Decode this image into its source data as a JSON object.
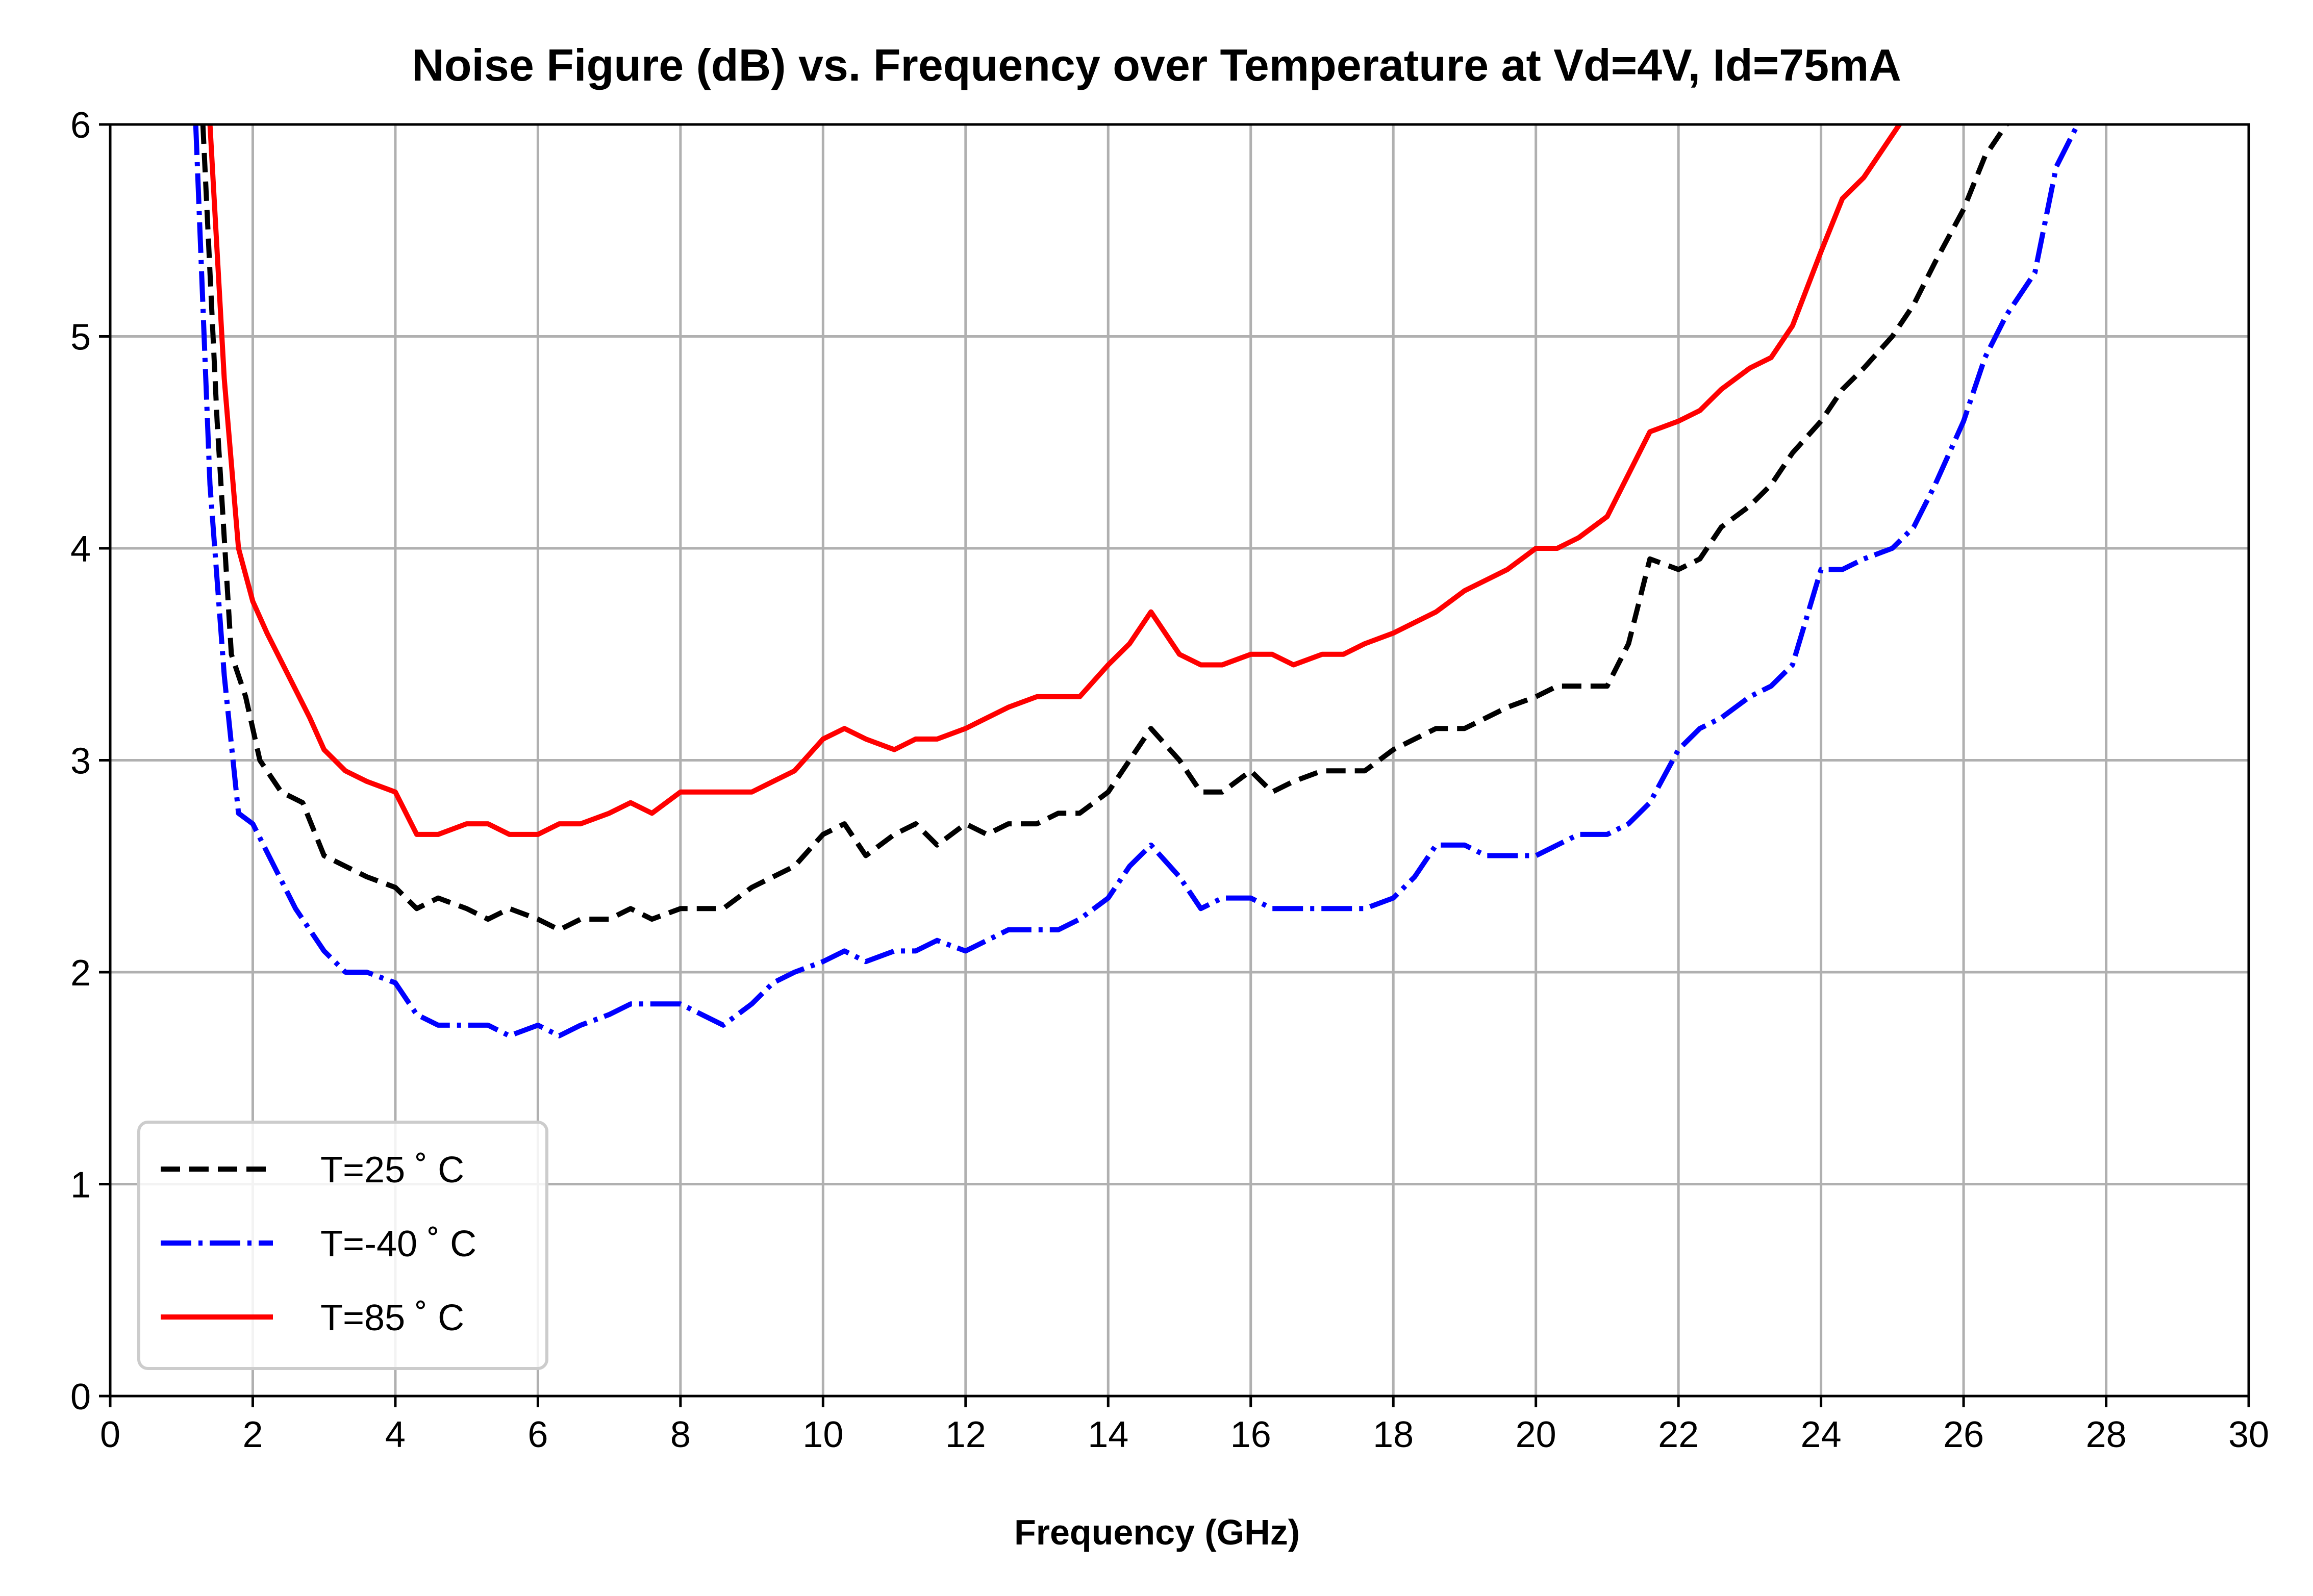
{
  "chart_data": {
    "type": "line",
    "title": "Noise Figure (dB) vs. Frequency over Temperature at Vd=4V, Id=75mA",
    "xlabel": "Frequency (GHz)",
    "ylabel": "",
    "xlim": [
      0,
      30
    ],
    "ylim": [
      0,
      6
    ],
    "xticks": [
      0,
      2,
      4,
      6,
      8,
      10,
      12,
      14,
      16,
      18,
      20,
      22,
      24,
      26,
      28,
      30
    ],
    "yticks": [
      0,
      1,
      2,
      3,
      4,
      5,
      6
    ],
    "grid": true,
    "legend_position": "lower-left",
    "series": [
      {
        "name": "T=25 ˚ C",
        "color": "#000000",
        "style": "dashed",
        "x": [
          1.3,
          1.5,
          1.7,
          1.9,
          2.1,
          2.4,
          2.7,
          3.0,
          3.3,
          3.6,
          4.0,
          4.3,
          4.6,
          5.0,
          5.3,
          5.6,
          6.0,
          6.3,
          6.6,
          7.0,
          7.3,
          7.6,
          8.0,
          8.3,
          8.6,
          9.0,
          9.3,
          9.6,
          10.0,
          10.3,
          10.6,
          11.0,
          11.3,
          11.6,
          12.0,
          12.3,
          12.6,
          13.0,
          13.3,
          13.6,
          14.0,
          14.3,
          14.6,
          15.0,
          15.3,
          15.6,
          16.0,
          16.3,
          16.6,
          17.0,
          17.3,
          17.6,
          18.0,
          18.3,
          18.6,
          19.0,
          19.3,
          19.6,
          20.0,
          20.3,
          20.6,
          21.0,
          21.3,
          21.6,
          22.0,
          22.3,
          22.6,
          23.0,
          23.3,
          23.6,
          24.0,
          24.3,
          24.6,
          25.0,
          25.3,
          25.6,
          26.0,
          26.3,
          26.6,
          27.0
        ],
        "y": [
          6.0,
          4.6,
          3.5,
          3.3,
          3.0,
          2.85,
          2.8,
          2.55,
          2.5,
          2.45,
          2.4,
          2.3,
          2.35,
          2.3,
          2.25,
          2.3,
          2.25,
          2.2,
          2.25,
          2.25,
          2.3,
          2.25,
          2.3,
          2.3,
          2.3,
          2.4,
          2.45,
          2.5,
          2.65,
          2.7,
          2.55,
          2.65,
          2.7,
          2.6,
          2.7,
          2.65,
          2.7,
          2.7,
          2.75,
          2.75,
          2.85,
          3.0,
          3.15,
          3.0,
          2.85,
          2.85,
          2.95,
          2.85,
          2.9,
          2.95,
          2.95,
          2.95,
          3.05,
          3.1,
          3.15,
          3.15,
          3.2,
          3.25,
          3.3,
          3.35,
          3.35,
          3.35,
          3.55,
          3.95,
          3.9,
          3.95,
          4.1,
          4.2,
          4.3,
          4.45,
          4.6,
          4.75,
          4.85,
          5.0,
          5.15,
          5.35,
          5.6,
          5.85,
          6.0,
          6.1
        ]
      },
      {
        "name": "T=-40 ˚ C",
        "color": "#0000ff",
        "style": "dashdot",
        "x": [
          1.2,
          1.4,
          1.6,
          1.8,
          2.0,
          2.3,
          2.6,
          3.0,
          3.3,
          3.6,
          4.0,
          4.3,
          4.6,
          5.0,
          5.3,
          5.6,
          6.0,
          6.3,
          6.6,
          7.0,
          7.3,
          7.6,
          8.0,
          8.3,
          8.6,
          9.0,
          9.3,
          9.6,
          10.0,
          10.3,
          10.6,
          11.0,
          11.3,
          11.6,
          12.0,
          12.3,
          12.6,
          13.0,
          13.3,
          13.6,
          14.0,
          14.3,
          14.6,
          15.0,
          15.3,
          15.6,
          16.0,
          16.3,
          16.6,
          17.0,
          17.3,
          17.6,
          18.0,
          18.3,
          18.6,
          19.0,
          19.3,
          19.6,
          20.0,
          20.3,
          20.6,
          21.0,
          21.3,
          21.6,
          22.0,
          22.3,
          22.6,
          23.0,
          23.3,
          23.6,
          24.0,
          24.3,
          24.6,
          25.0,
          25.3,
          25.6,
          26.0,
          26.3,
          26.6,
          27.0,
          27.3,
          27.6
        ],
        "y": [
          6.0,
          4.3,
          3.4,
          2.75,
          2.7,
          2.5,
          2.3,
          2.1,
          2.0,
          2.0,
          1.95,
          1.8,
          1.75,
          1.75,
          1.75,
          1.7,
          1.75,
          1.7,
          1.75,
          1.8,
          1.85,
          1.85,
          1.85,
          1.8,
          1.75,
          1.85,
          1.95,
          2.0,
          2.05,
          2.1,
          2.05,
          2.1,
          2.1,
          2.15,
          2.1,
          2.15,
          2.2,
          2.2,
          2.2,
          2.25,
          2.35,
          2.5,
          2.6,
          2.45,
          2.3,
          2.35,
          2.35,
          2.3,
          2.3,
          2.3,
          2.3,
          2.3,
          2.35,
          2.45,
          2.6,
          2.6,
          2.55,
          2.55,
          2.55,
          2.6,
          2.65,
          2.65,
          2.7,
          2.8,
          3.05,
          3.15,
          3.2,
          3.3,
          3.35,
          3.45,
          3.9,
          3.9,
          3.95,
          4.0,
          4.1,
          4.3,
          4.6,
          4.9,
          5.1,
          5.3,
          5.8,
          6.0
        ]
      },
      {
        "name": "T=85 ˚ C",
        "color": "#ff0000",
        "style": "solid",
        "x": [
          1.4,
          1.6,
          1.8,
          2.0,
          2.2,
          2.5,
          2.8,
          3.0,
          3.3,
          3.6,
          4.0,
          4.3,
          4.6,
          5.0,
          5.3,
          5.6,
          6.0,
          6.3,
          6.6,
          7.0,
          7.3,
          7.6,
          8.0,
          8.3,
          8.6,
          9.0,
          9.3,
          9.6,
          10.0,
          10.3,
          10.6,
          11.0,
          11.3,
          11.6,
          12.0,
          12.3,
          12.6,
          13.0,
          13.3,
          13.6,
          14.0,
          14.3,
          14.6,
          15.0,
          15.3,
          15.6,
          16.0,
          16.3,
          16.6,
          17.0,
          17.3,
          17.6,
          18.0,
          18.3,
          18.6,
          19.0,
          19.3,
          19.6,
          20.0,
          20.3,
          20.6,
          21.0,
          21.3,
          21.6,
          22.0,
          22.3,
          22.6,
          23.0,
          23.3,
          23.6,
          24.0,
          24.3,
          24.6,
          25.0,
          25.3
        ],
        "y": [
          6.0,
          4.8,
          4.0,
          3.75,
          3.6,
          3.4,
          3.2,
          3.05,
          2.95,
          2.9,
          2.85,
          2.65,
          2.65,
          2.7,
          2.7,
          2.65,
          2.65,
          2.7,
          2.7,
          2.75,
          2.8,
          2.75,
          2.85,
          2.85,
          2.85,
          2.85,
          2.9,
          2.95,
          3.1,
          3.15,
          3.1,
          3.05,
          3.1,
          3.1,
          3.15,
          3.2,
          3.25,
          3.3,
          3.3,
          3.3,
          3.45,
          3.55,
          3.7,
          3.5,
          3.45,
          3.45,
          3.5,
          3.5,
          3.45,
          3.5,
          3.5,
          3.55,
          3.6,
          3.65,
          3.7,
          3.8,
          3.85,
          3.9,
          4.0,
          4.0,
          4.05,
          4.15,
          4.35,
          4.55,
          4.6,
          4.65,
          4.75,
          4.85,
          4.9,
          5.05,
          5.4,
          5.65,
          5.75,
          5.95,
          6.1
        ]
      }
    ]
  }
}
